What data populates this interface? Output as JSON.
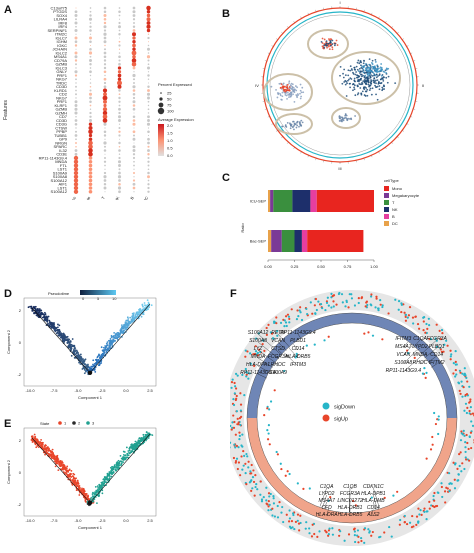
{
  "panels": {
    "A": "A",
    "B": "B",
    "C": "C",
    "D": "D",
    "E": "E",
    "F": "F"
  },
  "panelA": {
    "y_axis_title": "Features",
    "genes": [
      "C13orf75",
      "PTGDS",
      "SOX4",
      "LILRA4",
      "IRF8",
      "IRF4",
      "SERPINF1",
      "ITM2C",
      "IGLC7",
      "IGHM",
      "IGKC",
      "JCHAIN",
      "IGLC2",
      "MS4A1",
      "CD79A",
      "GZMB",
      "IGLC3",
      "GNLY",
      "PRF1",
      "NKG7",
      "TRDC",
      "CD3D",
      "KLRD1",
      "CD2",
      "NKG7",
      "PRF1",
      "KLRF1",
      "GZMB",
      "GZMH",
      "CD7",
      "CD3D",
      "CD3G",
      "CTSW",
      "PPBP",
      "TUBB1",
      "GP9",
      "NRGN",
      "SPARC",
      "IL32",
      "CD3E",
      "RP11-1143G9.4",
      "MNDA",
      "FTL",
      "LST1",
      "S100A9",
      "S100A8",
      "S100A12",
      "AIF1",
      "LST1",
      "S100A12"
    ],
    "groups": [
      "Mono",
      "Megakaryocyte",
      "T",
      "NK",
      "B",
      "DC"
    ],
    "legend_size_title": "Percent Expressed",
    "legend_size_values": [
      "25",
      "50",
      "75",
      "100"
    ],
    "legend_color_title": "Average Expression",
    "legend_color_values": [
      "2.0",
      "1.5",
      "1.0",
      "0.5",
      "0.0"
    ]
  },
  "panelB": {
    "tick_labels": [
      "I",
      "II",
      "III",
      "IV"
    ]
  },
  "panelC": {
    "y_axis_title": "Ratio",
    "legend_title": "cellType",
    "x_ticks": [
      "0.00",
      "0.25",
      "0.50",
      "0.75",
      "1.00"
    ],
    "bars": [
      {
        "label": "ICU-SEP",
        "segments": [
          0.02,
          0.03,
          0.18,
          0.17,
          0.06,
          0.54
        ]
      },
      {
        "label": "Bac-SEP",
        "segments": [
          0.03,
          0.1,
          0.12,
          0.07,
          0.05,
          0.53
        ]
      }
    ],
    "legend": [
      {
        "name": "Mono",
        "color": "#e8251f"
      },
      {
        "name": "Megakaryocyte",
        "color": "#7b3a96"
      },
      {
        "name": "T",
        "color": "#3a8f3e"
      },
      {
        "name": "NK",
        "color": "#1d2f6b"
      },
      {
        "name": "B",
        "color": "#e63ea0"
      },
      {
        "name": "DC",
        "color": "#e8a24a"
      }
    ],
    "segment_colors": [
      "#e8a24a",
      "#7b3a96",
      "#3a8f3e",
      "#1d2f6b",
      "#e63ea0",
      "#e8251f"
    ]
  },
  "panelD": {
    "legend_title": "Pseudotime",
    "legend_ticks": [
      "0",
      "5",
      "10"
    ],
    "x_axis": "Component 1",
    "y_axis": "Component 2",
    "x_ticks": [
      "-10.0",
      "-7.5",
      "-5.0",
      "-2.5",
      "0.0",
      "2.5"
    ],
    "y_ticks": [
      "2",
      "0",
      "-2"
    ]
  },
  "panelE": {
    "legend_title": "State",
    "states": [
      "1",
      "2",
      "3"
    ],
    "state_colors": [
      "#e8452a",
      "#2a2a2a",
      "#21a191"
    ],
    "x_axis": "Component 1",
    "y_axis": "Component 2",
    "x_ticks": [
      "-10.0",
      "-7.5",
      "-5.0",
      "-2.5",
      "0.0",
      "2.5"
    ],
    "y_ticks": [
      "2",
      "0",
      "-2"
    ]
  },
  "panelF": {
    "legend": [
      {
        "name": "sigDown",
        "color": "#26b5c8"
      },
      {
        "name": "sigUp",
        "color": "#e8452a"
      }
    ],
    "gene_labels_top_left": [
      "S100A12",
      "RETN",
      "RP11-1143G9.4",
      "S100A8",
      "VCAN",
      "PLBD1",
      "LYZ",
      "CTSD",
      "CD14",
      "MNDA",
      "FCGR3A",
      "HLA-DRB5",
      "HLA-DPA1",
      "RHOC",
      "IFITM3",
      "RP11-1143G9.4",
      "S100A9"
    ],
    "gene_labels_top_right": [
      "IFITM3",
      "C1QA",
      "FCGR3A",
      "MS4A7",
      "LYPD2",
      "PLBD1",
      "VCAN",
      "MNDA",
      "CD14",
      "S100A8",
      "RHOC",
      "IFITM2",
      "RP11-1143G9.4"
    ],
    "gene_labels_bottom": [
      "C1QA",
      "C1QB",
      "CDKN1C",
      "LYPD2",
      "FCGR3A",
      "HLA-DPB1",
      "MS4A7",
      "LINC01272",
      "HLA-DMB",
      "CFD",
      "HLA-DRB1",
      "CD14",
      "HLA-DRA",
      "HLA-DRB5",
      "ALS2"
    ]
  }
}
